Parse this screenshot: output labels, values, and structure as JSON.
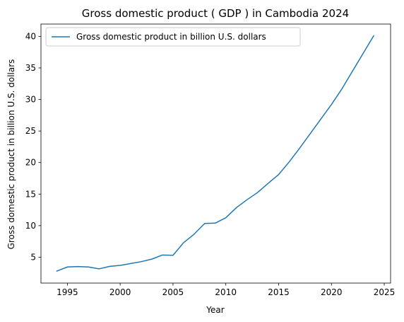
{
  "chart_data": {
    "type": "line",
    "title": "Gross domestic product ( GDP ) in Cambodia 2024",
    "xlabel": "Year",
    "ylabel": "Gross domestic product in billion U.S. dollars",
    "x": [
      1994,
      1995,
      1996,
      1997,
      1998,
      1999,
      2000,
      2001,
      2002,
      2003,
      2004,
      2005,
      2006,
      2007,
      2008,
      2009,
      2010,
      2011,
      2012,
      2013,
      2014,
      2015,
      2016,
      2017,
      2018,
      2019,
      2020,
      2021,
      2022,
      2023,
      2024
    ],
    "series": [
      {
        "name": "Gross domestic product in billion U.S. dollars",
        "values": [
          2.8,
          3.45,
          3.52,
          3.45,
          3.15,
          3.55,
          3.7,
          4.0,
          4.3,
          4.7,
          5.35,
          5.3,
          7.3,
          8.65,
          10.35,
          10.4,
          11.25,
          12.85,
          14.1,
          15.25,
          16.7,
          18.1,
          20.1,
          22.3,
          24.6,
          26.9,
          29.2,
          31.7,
          34.5,
          37.3,
          40.1
        ],
        "color": "#1f77b4"
      }
    ],
    "xlim": [
      1992.5,
      2025.6
    ],
    "ylim": [
      0.9,
      41.95
    ],
    "xticks": [
      1995,
      2000,
      2005,
      2010,
      2015,
      2020,
      2025
    ],
    "yticks": [
      5,
      10,
      15,
      20,
      25,
      30,
      35,
      40
    ],
    "grid": false,
    "legend_position": "top-left"
  }
}
